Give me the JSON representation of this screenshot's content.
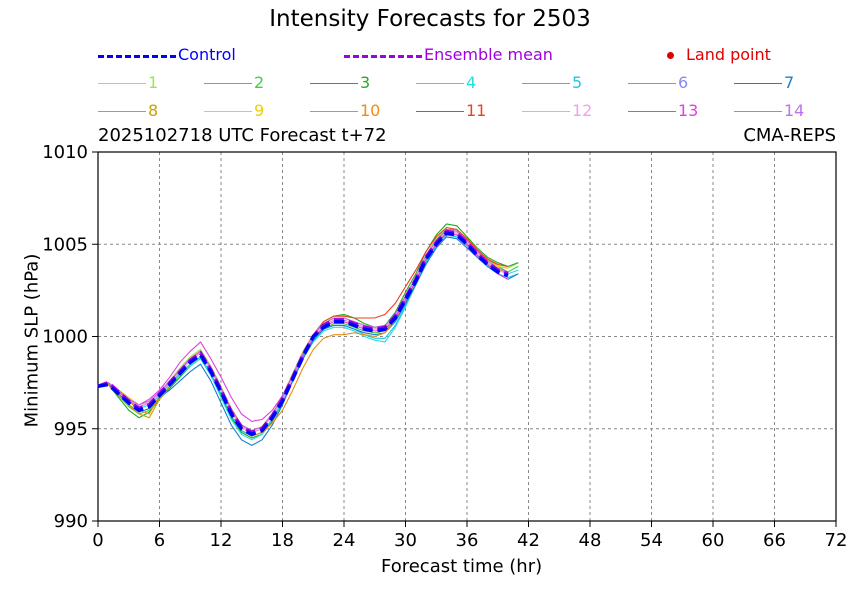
{
  "chart_data": {
    "type": "line",
    "title": "Intensity Forecasts for 2503",
    "subtitle_left": "2025102718 UTC Forecast t+72",
    "subtitle_right": "CMA-REPS",
    "xlabel": "Forecast time (hr)",
    "ylabel": "Minimum SLP (hPa)",
    "xlim": [
      0,
      72
    ],
    "ylim": [
      990,
      1010
    ],
    "xticks": [
      "0",
      "6",
      "12",
      "18",
      "24",
      "30",
      "36",
      "42",
      "48",
      "54",
      "60",
      "66",
      "72"
    ],
    "yticks": [
      "990",
      "995",
      "1000",
      "1005",
      "1010"
    ],
    "grid": true,
    "legend": {
      "control": {
        "label": "Control",
        "color": "#0000ff"
      },
      "ensemble_mean": {
        "label": "Ensemble mean",
        "color": "#a000e0"
      },
      "land_point": {
        "label": "Land point",
        "color": "#e00000"
      },
      "members": [
        {
          "label": "1",
          "color": "#9de64a"
        },
        {
          "label": "2",
          "color": "#44cc44"
        },
        {
          "label": "3",
          "color": "#22aa22"
        },
        {
          "label": "4",
          "color": "#22e0e0"
        },
        {
          "label": "5",
          "color": "#22c4e8"
        },
        {
          "label": "6",
          "color": "#8a8aee"
        },
        {
          "label": "7",
          "color": "#1a80cc"
        },
        {
          "label": "8",
          "color": "#c8a200"
        },
        {
          "label": "9",
          "color": "#f0d000"
        },
        {
          "label": "10",
          "color": "#f08c10"
        },
        {
          "label": "11",
          "color": "#f04020"
        },
        {
          "label": "12",
          "color": "#f0a0f0"
        },
        {
          "label": "13",
          "color": "#e040e0"
        },
        {
          "label": "14",
          "color": "#c070f0"
        }
      ]
    },
    "x": [
      0,
      1,
      2,
      3,
      4,
      5,
      6,
      7,
      8,
      9,
      10,
      11,
      12,
      13,
      14,
      15,
      16,
      17,
      18,
      19,
      20,
      21,
      22,
      23,
      24,
      25,
      26,
      27,
      28,
      29,
      30,
      31,
      32,
      33,
      34,
      35,
      36,
      37,
      38,
      39,
      40,
      41
    ],
    "control": [
      997.3,
      997.4,
      996.9,
      996.4,
      996.0,
      996.2,
      996.8,
      997.4,
      998.0,
      998.6,
      999.0,
      998.1,
      997.0,
      995.8,
      995.0,
      994.7,
      994.9,
      995.6,
      996.5,
      997.7,
      998.9,
      1000.0,
      1000.5,
      1000.8,
      1000.8,
      1000.6,
      1000.4,
      1000.3,
      1000.4,
      1001.0,
      1002.0,
      1003.0,
      1004.2,
      1005.0,
      1005.6,
      1005.5,
      1005.0,
      1004.4,
      1003.9,
      1003.5,
      1003.3,
      null
    ],
    "ensemble_mean": [
      997.3,
      997.5,
      997.0,
      996.5,
      996.1,
      996.3,
      996.9,
      997.5,
      998.1,
      998.7,
      999.1,
      998.2,
      997.1,
      995.9,
      995.1,
      994.8,
      995.0,
      995.7,
      996.6,
      997.8,
      999.0,
      1000.0,
      1000.6,
      1000.9,
      1000.9,
      1000.7,
      1000.5,
      1000.4,
      1000.5,
      1001.1,
      1002.1,
      1003.1,
      1004.3,
      1005.1,
      1005.7,
      1005.6,
      1005.1,
      1004.5,
      1004.0,
      1003.6,
      1003.4,
      null
    ],
    "members": [
      {
        "name": "1",
        "values": [
          997.3,
          997.5,
          997.0,
          996.6,
          996.3,
          996.5,
          997.0,
          997.6,
          998.3,
          998.9,
          999.3,
          998.4,
          997.3,
          996.1,
          995.2,
          994.9,
          995.1,
          995.8,
          996.8,
          998.0,
          999.2,
          1000.1,
          1000.7,
          1001.0,
          1001.0,
          1000.8,
          1000.6,
          1000.5,
          1000.6,
          1001.2,
          1002.2,
          1003.2,
          1004.4,
          1005.3,
          1005.9,
          1005.8,
          1005.2,
          1004.6,
          1004.1,
          1003.8,
          1003.7,
          1004.0
        ]
      },
      {
        "name": "2",
        "values": [
          997.3,
          997.4,
          996.8,
          996.2,
          995.8,
          996.0,
          996.7,
          997.3,
          997.9,
          998.5,
          998.9,
          998.0,
          996.9,
          995.7,
          994.9,
          994.6,
          994.8,
          995.5,
          996.4,
          997.7,
          998.9,
          999.9,
          1000.4,
          1000.7,
          1000.7,
          1000.5,
          1000.3,
          1000.2,
          1000.3,
          1000.9,
          1001.9,
          1002.9,
          1004.1,
          1005.1,
          1005.8,
          1005.8,
          1005.3,
          1004.7,
          1004.2,
          1003.8,
          1003.5,
          1003.8
        ]
      },
      {
        "name": "3",
        "values": [
          997.3,
          997.4,
          996.7,
          996.0,
          995.6,
          995.9,
          996.6,
          997.2,
          997.8,
          998.4,
          998.8,
          997.9,
          996.8,
          995.6,
          994.8,
          994.5,
          994.7,
          995.4,
          996.4,
          997.7,
          999.0,
          1000.1,
          1000.8,
          1001.1,
          1001.2,
          1001.0,
          1000.7,
          1000.5,
          1000.6,
          1001.3,
          1002.4,
          1003.4,
          1004.6,
          1005.5,
          1006.1,
          1006.0,
          1005.4,
          1004.8,
          1004.3,
          1004.0,
          1003.8,
          1004.0
        ]
      },
      {
        "name": "4",
        "values": [
          997.3,
          997.5,
          997.0,
          996.5,
          996.1,
          996.3,
          996.8,
          997.3,
          997.9,
          998.4,
          998.8,
          997.9,
          996.7,
          995.5,
          994.7,
          994.4,
          994.7,
          995.5,
          996.5,
          997.7,
          998.8,
          999.7,
          1000.3,
          1000.5,
          1000.5,
          1000.3,
          1000.0,
          999.8,
          999.7,
          1000.5,
          1001.6,
          1002.8,
          1004.0,
          1005.0,
          1005.6,
          1005.5,
          1005.0,
          1004.5,
          1004.0,
          1003.6,
          1003.4,
          1003.6
        ]
      },
      {
        "name": "5",
        "values": [
          997.3,
          997.5,
          997.1,
          996.6,
          996.2,
          996.4,
          996.9,
          997.4,
          998.0,
          998.5,
          998.9,
          998.0,
          996.9,
          995.7,
          994.9,
          994.6,
          994.8,
          995.5,
          996.4,
          997.6,
          998.8,
          999.8,
          1000.4,
          1000.6,
          1000.6,
          1000.4,
          1000.1,
          999.9,
          999.9,
          1000.6,
          1001.7,
          1002.8,
          1004.0,
          1004.9,
          1005.5,
          1005.4,
          1004.9,
          1004.3,
          1003.8,
          1003.4,
          1003.2,
          1003.4
        ]
      },
      {
        "name": "6",
        "values": [
          997.3,
          997.5,
          997.0,
          996.5,
          996.2,
          996.4,
          996.9,
          997.5,
          998.1,
          998.7,
          999.1,
          998.2,
          997.1,
          995.9,
          995.1,
          994.8,
          995.0,
          995.7,
          996.6,
          997.8,
          999.0,
          1000.0,
          1000.6,
          1000.9,
          1000.9,
          1000.7,
          1000.5,
          1000.4,
          1000.5,
          1001.1,
          1002.1,
          1003.1,
          1004.3,
          1005.1,
          1005.7,
          1005.6,
          1005.1,
          1004.5,
          1004.0,
          1003.6,
          1003.4,
          null
        ]
      },
      {
        "name": "7",
        "values": [
          997.3,
          997.4,
          996.9,
          996.3,
          995.9,
          996.1,
          996.7,
          997.1,
          997.6,
          998.1,
          998.5,
          997.6,
          996.4,
          995.2,
          994.4,
          994.1,
          994.4,
          995.2,
          996.3,
          997.6,
          998.8,
          999.8,
          1000.4,
          1000.6,
          1000.6,
          1000.4,
          1000.2,
          1000.1,
          1000.2,
          1000.8,
          1001.8,
          1002.8,
          1003.9,
          1004.8,
          1005.4,
          1005.3,
          1004.8,
          1004.3,
          1003.8,
          1003.4,
          1003.1,
          1003.4
        ]
      },
      {
        "name": "8",
        "values": [
          997.3,
          997.4,
          996.8,
          996.3,
          995.8,
          995.6,
          996.6,
          997.3,
          998.2,
          998.8,
          999.2,
          998.3,
          997.2,
          996.0,
          995.2,
          994.9,
          995.1,
          995.7,
          996.6,
          997.8,
          999.0,
          1000.0,
          1000.6,
          1000.9,
          1000.9,
          1000.7,
          1000.5,
          1000.4,
          1000.5,
          1001.1,
          1002.1,
          1003.1,
          1004.3,
          1005.1,
          1005.6,
          1005.5,
          1005.0,
          1004.4,
          1003.9,
          1003.6,
          1003.5,
          null
        ]
      },
      {
        "name": "9",
        "values": [
          997.3,
          997.5,
          997.1,
          996.7,
          996.3,
          996.5,
          997.0,
          997.6,
          998.2,
          998.8,
          999.2,
          998.3,
          997.2,
          996.0,
          995.2,
          994.9,
          995.1,
          995.8,
          996.7,
          997.9,
          999.1,
          1000.1,
          1000.7,
          1001.0,
          1001.0,
          1000.8,
          1000.6,
          1000.5,
          1000.6,
          1001.2,
          1002.2,
          1003.2,
          1004.4,
          1005.2,
          1005.8,
          1005.7,
          1005.2,
          1004.6,
          1004.1,
          1003.8,
          1003.7,
          null
        ]
      },
      {
        "name": "10",
        "values": [
          997.3,
          997.5,
          997.0,
          996.5,
          996.0,
          995.8,
          996.8,
          997.5,
          998.1,
          998.7,
          999.1,
          998.2,
          997.2,
          996.1,
          995.2,
          994.6,
          994.8,
          995.3,
          996.0,
          997.1,
          998.3,
          999.3,
          999.9,
          1000.1,
          1000.1,
          1000.2,
          1000.1,
          1000.0,
          1000.2,
          1000.9,
          1002.0,
          1003.1,
          1004.3,
          1005.2,
          1005.8,
          1005.7,
          1005.2,
          1004.6,
          1004.2,
          1003.9,
          1003.8,
          null
        ]
      },
      {
        "name": "11",
        "values": [
          997.3,
          997.5,
          997.0,
          996.6,
          996.2,
          996.4,
          996.9,
          997.5,
          998.2,
          998.8,
          999.2,
          998.3,
          997.2,
          996.0,
          995.2,
          994.9,
          995.1,
          995.8,
          996.7,
          997.9,
          999.1,
          1000.1,
          1000.8,
          1001.1,
          1001.1,
          1001.0,
          1001.0,
          1001.0,
          1001.2,
          1001.8,
          1002.7,
          1003.6,
          1004.6,
          1005.4,
          1005.9,
          1005.8,
          1005.3,
          1004.7,
          1004.2,
          1003.9,
          1003.8,
          null
        ]
      },
      {
        "name": "12",
        "values": [
          997.3,
          997.5,
          997.0,
          996.6,
          996.2,
          996.4,
          996.9,
          997.5,
          998.1,
          998.7,
          999.1,
          998.2,
          997.1,
          995.9,
          995.1,
          994.8,
          995.0,
          995.7,
          996.6,
          997.8,
          999.0,
          1000.0,
          1000.6,
          1000.9,
          1000.9,
          1000.7,
          1000.5,
          1000.4,
          1000.5,
          1001.1,
          1002.1,
          1003.1,
          1004.3,
          1005.1,
          1005.7,
          1005.6,
          1005.1,
          1004.5,
          1004.0,
          1003.6,
          1003.4,
          null
        ]
      },
      {
        "name": "13",
        "values": [
          997.3,
          997.5,
          997.0,
          996.6,
          996.3,
          996.6,
          997.1,
          997.8,
          998.6,
          999.2,
          999.7,
          998.8,
          997.8,
          996.7,
          995.8,
          995.4,
          995.5,
          996.0,
          996.8,
          997.9,
          999.0,
          999.9,
          1000.5,
          1000.8,
          1000.8,
          1000.6,
          1000.4,
          1000.3,
          1000.4,
          1001.0,
          1002.0,
          1003.0,
          1004.2,
          1005.0,
          1005.6,
          1005.5,
          1005.0,
          1004.4,
          1003.9,
          1003.4,
          1003.1,
          null
        ]
      },
      {
        "name": "14",
        "values": [
          997.3,
          997.5,
          997.1,
          996.6,
          996.3,
          996.5,
          997.0,
          997.6,
          998.2,
          998.8,
          999.2,
          998.3,
          997.2,
          996.0,
          995.2,
          994.9,
          995.1,
          995.8,
          996.7,
          997.9,
          999.1,
          1000.1,
          1000.7,
          1001.0,
          1001.0,
          1000.8,
          1000.6,
          1000.5,
          1000.6,
          1001.2,
          1002.2,
          1003.2,
          1004.4,
          1005.2,
          1005.8,
          1005.7,
          1005.2,
          1004.6,
          1004.1,
          1003.7,
          1003.5,
          null
        ]
      }
    ]
  }
}
